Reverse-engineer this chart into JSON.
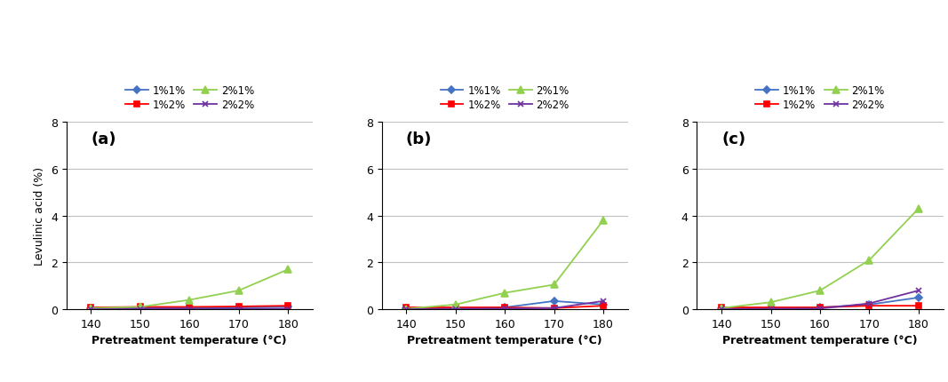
{
  "x": [
    140,
    150,
    160,
    170,
    180
  ],
  "panels": [
    {
      "label": "(a)",
      "series": {
        "1%1%": [
          0.05,
          0.05,
          0.05,
          0.08,
          0.1
        ],
        "1%2%": [
          0.08,
          0.1,
          0.1,
          0.12,
          0.15
        ],
        "2%1%": [
          0.05,
          0.1,
          0.4,
          0.8,
          1.7
        ],
        "2%2%": [
          0.0,
          0.02,
          0.02,
          0.02,
          0.02
        ]
      }
    },
    {
      "label": "(b)",
      "series": {
        "1%1%": [
          0.03,
          0.05,
          0.08,
          0.35,
          0.2
        ],
        "1%2%": [
          0.08,
          0.08,
          0.08,
          0.05,
          0.15
        ],
        "2%1%": [
          0.02,
          0.2,
          0.7,
          1.05,
          3.8
        ],
        "2%2%": [
          0.0,
          0.02,
          0.03,
          0.05,
          0.35
        ]
      }
    },
    {
      "label": "(c)",
      "series": {
        "1%1%": [
          0.05,
          0.05,
          0.08,
          0.2,
          0.5
        ],
        "1%2%": [
          0.08,
          0.08,
          0.08,
          0.15,
          0.15
        ],
        "2%1%": [
          0.05,
          0.3,
          0.8,
          2.1,
          4.3
        ],
        "2%2%": [
          0.0,
          0.02,
          0.03,
          0.25,
          0.8
        ]
      }
    }
  ],
  "series_styles": {
    "1%1%": {
      "color": "#4472C4",
      "marker": "D",
      "markersize": 4
    },
    "1%2%": {
      "color": "#FF0000",
      "marker": "s",
      "markersize": 4
    },
    "2%1%": {
      "color": "#92D050",
      "marker": "^",
      "markersize": 6
    },
    "2%2%": {
      "color": "#7030A0",
      "marker": "x",
      "markersize": 5
    }
  },
  "ylim": [
    0,
    8
  ],
  "yticks": [
    0,
    2,
    4,
    6,
    8
  ],
  "ylabel": "Levulinic acid (%)",
  "xlabel": "Pretreatment temperature (°C)",
  "legend_row1": [
    "1%1%",
    "1%2%"
  ],
  "legend_row2": [
    "2%1%",
    "2%2%"
  ],
  "background_color": "#ffffff",
  "grid_color": "#c0c0c0"
}
